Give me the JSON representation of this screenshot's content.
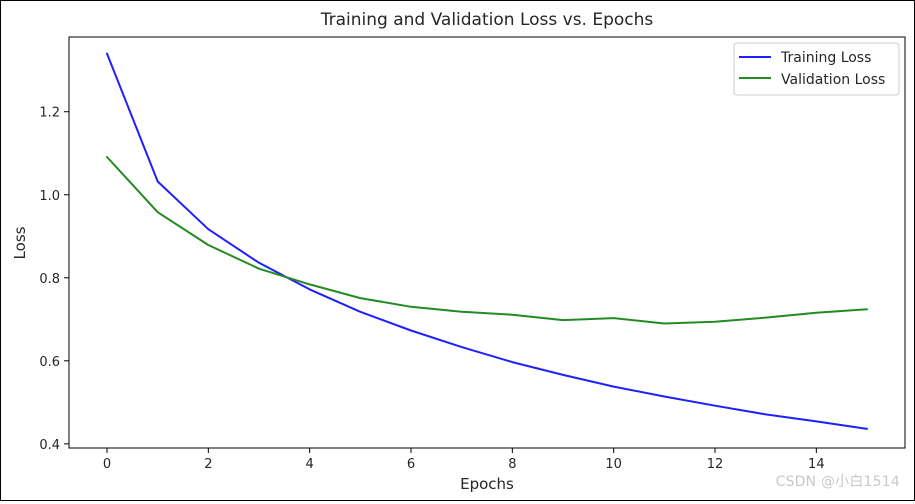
{
  "chart_data": {
    "type": "line",
    "title": "Training and Validation Loss vs. Epochs",
    "xlabel": "Epochs",
    "ylabel": "Loss",
    "xlim": [
      -0.75,
      15.75
    ],
    "ylim": [
      0.39,
      1.38
    ],
    "x_ticks": [
      0,
      2,
      4,
      6,
      8,
      10,
      12,
      14
    ],
    "x_tick_labels": [
      "0",
      "2",
      "4",
      "6",
      "8",
      "10",
      "12",
      "14"
    ],
    "y_ticks": [
      0.4,
      0.6,
      0.8,
      1.0,
      1.2
    ],
    "y_tick_labels": [
      "0.4",
      "0.6",
      "0.8",
      "1.0",
      "1.2"
    ],
    "grid": false,
    "legend_position": "top-right",
    "x": [
      0,
      1,
      2,
      3,
      4,
      5,
      6,
      7,
      8,
      9,
      10,
      11,
      12,
      13,
      14,
      15
    ],
    "series": [
      {
        "name": "Training Loss",
        "color": "#1f1fff",
        "values": [
          1.34,
          1.032,
          0.917,
          0.836,
          0.772,
          0.718,
          0.673,
          0.633,
          0.597,
          0.566,
          0.538,
          0.514,
          0.492,
          0.471,
          0.454,
          0.436
        ]
      },
      {
        "name": "Validation Loss",
        "color": "#228b22",
        "values": [
          1.091,
          0.958,
          0.879,
          0.822,
          0.784,
          0.751,
          0.73,
          0.718,
          0.711,
          0.698,
          0.703,
          0.69,
          0.694,
          0.704,
          0.716,
          0.724
        ]
      }
    ]
  },
  "watermark": "CSDN @小白1514"
}
